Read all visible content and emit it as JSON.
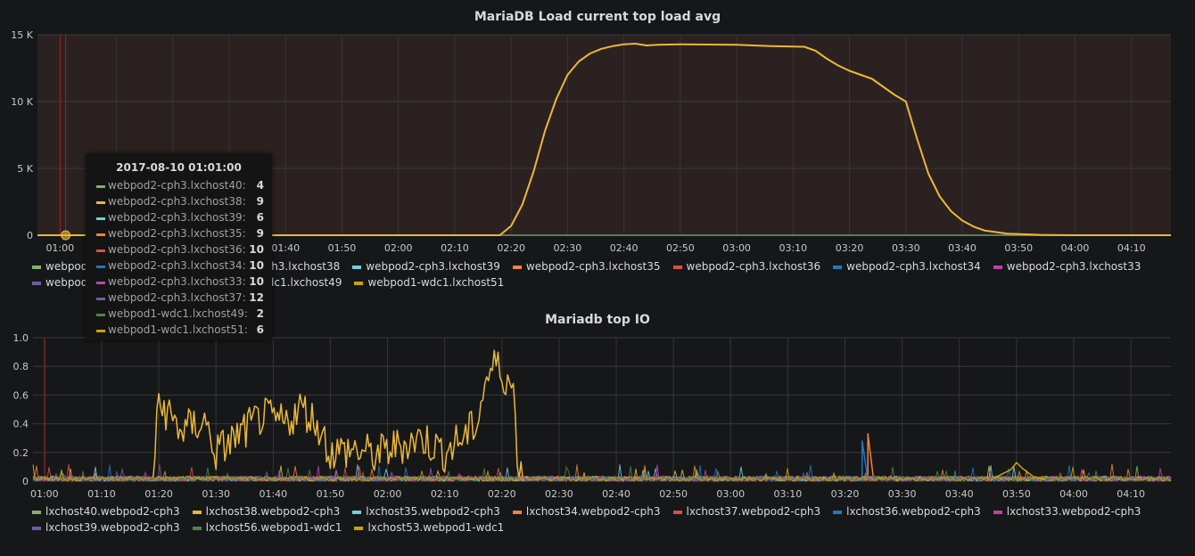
{
  "chart_data": [
    {
      "type": "line",
      "title": "MariaDB Load current top load avg",
      "x_ticks": [
        "01:00",
        "01:10",
        "01:20",
        "01:30",
        "01:40",
        "01:50",
        "02:00",
        "02:10",
        "02:20",
        "02:30",
        "02:40",
        "02:50",
        "03:00",
        "03:10",
        "03:20",
        "03:30",
        "03:40",
        "03:50",
        "04:00",
        "04:10"
      ],
      "y_ticks": [
        "0",
        "5 K",
        "10 K",
        "15 K"
      ],
      "ylim": [
        0,
        15000
      ],
      "grid": true,
      "legend_position": "bottom",
      "series": [
        {
          "name": "webpod2-cph3.lxchost40",
          "color": "#7eb26d"
        },
        {
          "name": "webpod2-cph3.lxchost38",
          "color": "#eab839"
        },
        {
          "name": "webpod2-cph3.lxchost39",
          "color": "#6ed0e0"
        },
        {
          "name": "webpod2-cph3.lxchost35",
          "color": "#ef843c"
        },
        {
          "name": "webpod2-cph3.lxchost36",
          "color": "#e24d42"
        },
        {
          "name": "webpod2-cph3.lxchost34",
          "color": "#1f78c1"
        },
        {
          "name": "webpod2-cph3.lxchost33",
          "color": "#ba43a9"
        },
        {
          "name": "webpod2-cph3.lxchost37",
          "color": "#705da0"
        },
        {
          "name": "webpod1-wdc1.lxchost49",
          "color": "#508642"
        },
        {
          "name": "webpod1-wdc1.lxchost51",
          "color": "#cca300",
          "points": [
            [
              "00:56",
              0
            ],
            [
              "02:18",
              0
            ],
            [
              "02:20",
              700
            ],
            [
              "02:22",
              2300
            ],
            [
              "02:24",
              4800
            ],
            [
              "02:26",
              7800
            ],
            [
              "02:28",
              10200
            ],
            [
              "02:30",
              12000
            ],
            [
              "02:32",
              13000
            ],
            [
              "02:34",
              13600
            ],
            [
              "02:36",
              13950
            ],
            [
              "02:38",
              14150
            ],
            [
              "02:40",
              14280
            ],
            [
              "02:42",
              14330
            ],
            [
              "02:44",
              14200
            ],
            [
              "02:46",
              14250
            ],
            [
              "02:50",
              14290
            ],
            [
              "03:00",
              14250
            ],
            [
              "03:06",
              14150
            ],
            [
              "03:12",
              14100
            ],
            [
              "03:14",
              13800
            ],
            [
              "03:16",
              13200
            ],
            [
              "03:18",
              12700
            ],
            [
              "03:20",
              12300
            ],
            [
              "03:22",
              12000
            ],
            [
              "03:24",
              11700
            ],
            [
              "03:26",
              11100
            ],
            [
              "03:28",
              10500
            ],
            [
              "03:30",
              10000
            ],
            [
              "03:32",
              7200
            ],
            [
              "03:34",
              4600
            ],
            [
              "03:36",
              2900
            ],
            [
              "03:38",
              1800
            ],
            [
              "03:40",
              1100
            ],
            [
              "03:42",
              650
            ],
            [
              "03:44",
              350
            ],
            [
              "03:48",
              120
            ],
            [
              "03:54",
              30
            ],
            [
              "04:00",
              0
            ],
            [
              "04:17",
              0
            ]
          ]
        }
      ],
      "hover_time": "01:01"
    },
    {
      "type": "line",
      "title": "Mariadb top IO",
      "x_ticks": [
        "01:00",
        "01:10",
        "01:20",
        "01:30",
        "01:40",
        "01:50",
        "02:00",
        "02:10",
        "02:20",
        "02:30",
        "02:40",
        "02:50",
        "03:00",
        "03:10",
        "03:20",
        "03:30",
        "03:40",
        "03:50",
        "04:00",
        "04:10"
      ],
      "y_ticks": [
        "0",
        "0.2",
        "0.4",
        "0.6",
        "0.8",
        "1.0"
      ],
      "ylim": [
        0,
        1.0
      ],
      "grid": true,
      "legend_position": "bottom",
      "series": [
        {
          "name": "lxchost40.webpod2-cph3",
          "color": "#7eb26d"
        },
        {
          "name": "lxchost38.webpod2-cph3",
          "color": "#eab839",
          "points": [
            [
              "01:19",
              0.02
            ],
            [
              "01:20",
              0.55
            ],
            [
              "01:24",
              0.35
            ],
            [
              "01:28",
              0.42
            ],
            [
              "01:30",
              0.2
            ],
            [
              "01:34",
              0.32
            ],
            [
              "01:38",
              0.45
            ],
            [
              "01:42",
              0.4
            ],
            [
              "01:45",
              0.52
            ],
            [
              "01:48",
              0.38
            ],
            [
              "01:50",
              0.2
            ],
            [
              "01:54",
              0.22
            ],
            [
              "01:58",
              0.18
            ],
            [
              "02:02",
              0.25
            ],
            [
              "02:06",
              0.3
            ],
            [
              "02:10",
              0.2
            ],
            [
              "02:12",
              0.27
            ],
            [
              "02:14",
              0.32
            ],
            [
              "02:16",
              0.45
            ],
            [
              "02:17",
              0.7
            ],
            [
              "02:18",
              0.75
            ],
            [
              "02:19",
              0.82
            ],
            [
              "02:20",
              0.75
            ],
            [
              "02:21",
              0.72
            ],
            [
              "02:22",
              0.62
            ],
            [
              "02:23",
              0.05
            ],
            [
              "02:25",
              0.01
            ]
          ],
          "amp": 0.14
        },
        {
          "name": "lxchost35.webpod2-cph3",
          "color": "#6ed0e0"
        },
        {
          "name": "lxchost34.webpod2-cph3",
          "color": "#ef843c",
          "points": [
            [
              "03:24",
              0.02
            ],
            [
              "03:24",
              0.33
            ],
            [
              "03:25",
              0.01
            ]
          ]
        },
        {
          "name": "lxchost37.webpod2-cph3",
          "color": "#e24d42"
        },
        {
          "name": "lxchost36.webpod2-cph3",
          "color": "#1f78c1",
          "points": [
            [
              "03:23",
              0.01
            ],
            [
              "03:23",
              0.28
            ],
            [
              "03:24",
              0.01
            ]
          ]
        },
        {
          "name": "lxchost33.webpod2-cph3",
          "color": "#ba43a9"
        },
        {
          "name": "lxchost39.webpod2-cph3",
          "color": "#705da0"
        },
        {
          "name": "lxchost56.webpod1-wdc1",
          "color": "#508642"
        },
        {
          "name": "lxchost53.webpod1-wdc1",
          "color": "#cca300",
          "points": [
            [
              "03:46",
              0.02
            ],
            [
              "03:49",
              0.08
            ],
            [
              "03:50",
              0.13
            ],
            [
              "03:51",
              0.09
            ],
            [
              "03:53",
              0.03
            ],
            [
              "03:55",
              0.01
            ]
          ]
        }
      ],
      "hover_time": "01:01"
    }
  ],
  "panel1": {
    "title": "MariaDB Load current top load avg",
    "legend_rows": [
      [
        "webpod2-cph3.lxchost40",
        "webpod2-cph3.lxchost38",
        "webpod2-cph3.lxchost39",
        "webpod2-cph3.lxchost35",
        "webpod2-cph3.lxchost36",
        "webpod2-cph3.lxchost34",
        "webpod2-cph3.lxchost33"
      ],
      [
        "webpod2-cph3.lxchost37",
        "webpod1-wdc1.lxchost49",
        "webpod1-wdc1.lxchost51"
      ]
    ]
  },
  "panel2": {
    "title": "Mariadb top IO",
    "legend_rows": [
      [
        "lxchost40.webpod2-cph3",
        "lxchost38.webpod2-cph3",
        "lxchost35.webpod2-cph3",
        "lxchost34.webpod2-cph3",
        "lxchost37.webpod2-cph3",
        "lxchost36.webpod2-cph3",
        "lxchost33.webpod2-cph3"
      ],
      [
        "lxchost39.webpod2-cph3",
        "lxchost56.webpod1-wdc1",
        "lxchost53.webpod1-wdc1"
      ]
    ]
  },
  "tooltip": {
    "title": "2017-08-10 01:01:00",
    "rows": [
      {
        "name": "webpod2-cph3.lxchost40:",
        "value": "4",
        "color": "#7eb26d"
      },
      {
        "name": "webpod2-cph3.lxchost38:",
        "value": "9",
        "color": "#eab839"
      },
      {
        "name": "webpod2-cph3.lxchost39:",
        "value": "6",
        "color": "#6ed0e0"
      },
      {
        "name": "webpod2-cph3.lxchost35:",
        "value": "9",
        "color": "#ef843c"
      },
      {
        "name": "webpod2-cph3.lxchost36:",
        "value": "10",
        "color": "#e24d42"
      },
      {
        "name": "webpod2-cph3.lxchost34:",
        "value": "10",
        "color": "#1f78c1"
      },
      {
        "name": "webpod2-cph3.lxchost33:",
        "value": "10",
        "color": "#ba43a9"
      },
      {
        "name": "webpod2-cph3.lxchost37:",
        "value": "12",
        "color": "#705da0"
      },
      {
        "name": "webpod1-wdc1.lxchost49:",
        "value": "2",
        "color": "#508642"
      },
      {
        "name": "webpod1-wdc1.lxchost51:",
        "value": "6",
        "color": "#cca300"
      }
    ]
  }
}
